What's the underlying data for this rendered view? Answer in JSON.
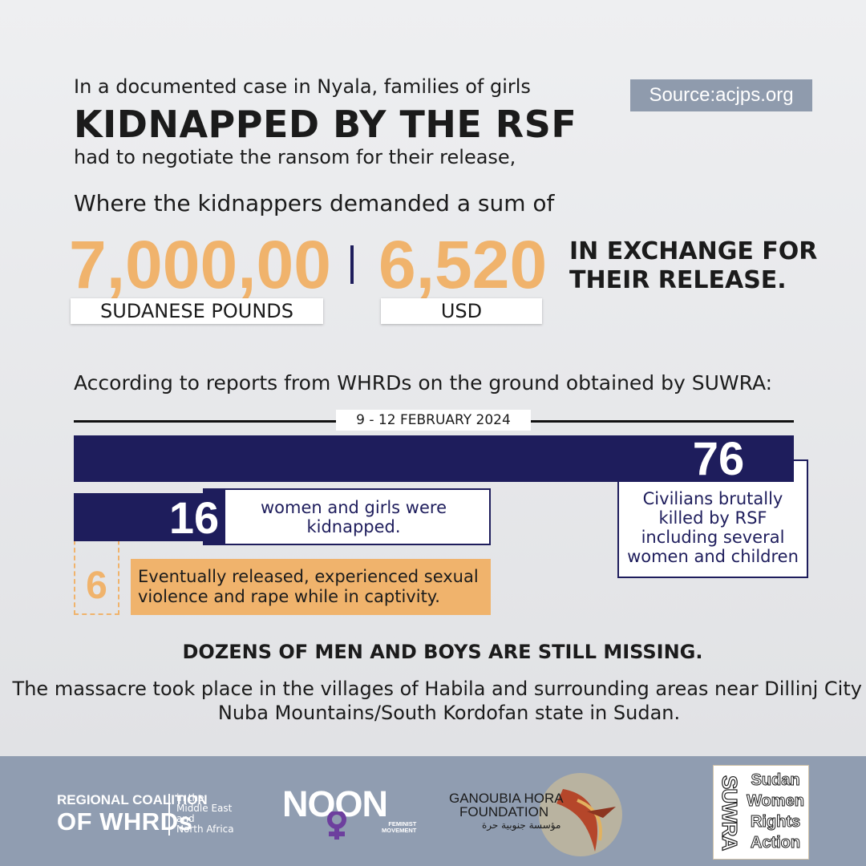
{
  "header": {
    "intro_line1": "In a documented case in Nyala, families of girls",
    "headline": "KIDNAPPED BY THE RSF",
    "intro_line2": "had to negotiate the ransom for their release,",
    "intro_line3": "Where the kidnappers demanded a sum of",
    "source_label": "Source:acjps.org"
  },
  "ransom": {
    "amount_local": "7,000,00",
    "unit_local": "SUDANESE POUNDS",
    "amount_usd": "6,520",
    "unit_usd": "USD",
    "exchange_line1": "IN EXCHANGE FOR",
    "exchange_line2": "THEIR RELEASE."
  },
  "report": {
    "according": "According to reports from WHRDs on the ground obtained by SUWRA:",
    "date": "9 - 12 FEBRUARY 2024",
    "killed_number": "76",
    "killed_text": "Civilians brutally killed by RSF including several women and children",
    "kidnapped_number": "16",
    "kidnapped_text": "women and girls were kidnapped.",
    "released_number": "6",
    "released_text_line1": "Eventually released, experienced sexual",
    "released_text_line2": "violence and rape while in captivity.",
    "colors": {
      "navy": "#1e1d5c",
      "orange": "#f0b36c"
    }
  },
  "footer_text": {
    "missing": "DOZENS OF MEN AND BOYS ARE STILL MISSING.",
    "massacre": "The massacre took place in the villages of Habila and surrounding areas near Dillinj City in Nuba Mountains/South Kordofan state in Sudan."
  },
  "logos": {
    "regional_coalition": {
      "line1": "REGIONAL COALITION",
      "line2": "OF WHRDs",
      "sub1": "in the",
      "sub2": "Middle East",
      "sub3": "and",
      "sub4": "North Africa"
    },
    "noon": {
      "name": "NOON",
      "sub1": "FEMINIST",
      "sub2": "MOVEMENT"
    },
    "ganoubia": {
      "name1": "GANOUBIA HORA",
      "name2": "FOUNDATION",
      "arabic": "مؤسسة جنوبية حرة"
    },
    "suwra": {
      "acronym": "SUWRA",
      "word1": "Sudan",
      "word2": "Women",
      "word3": "Rights",
      "word4": "Action"
    }
  }
}
